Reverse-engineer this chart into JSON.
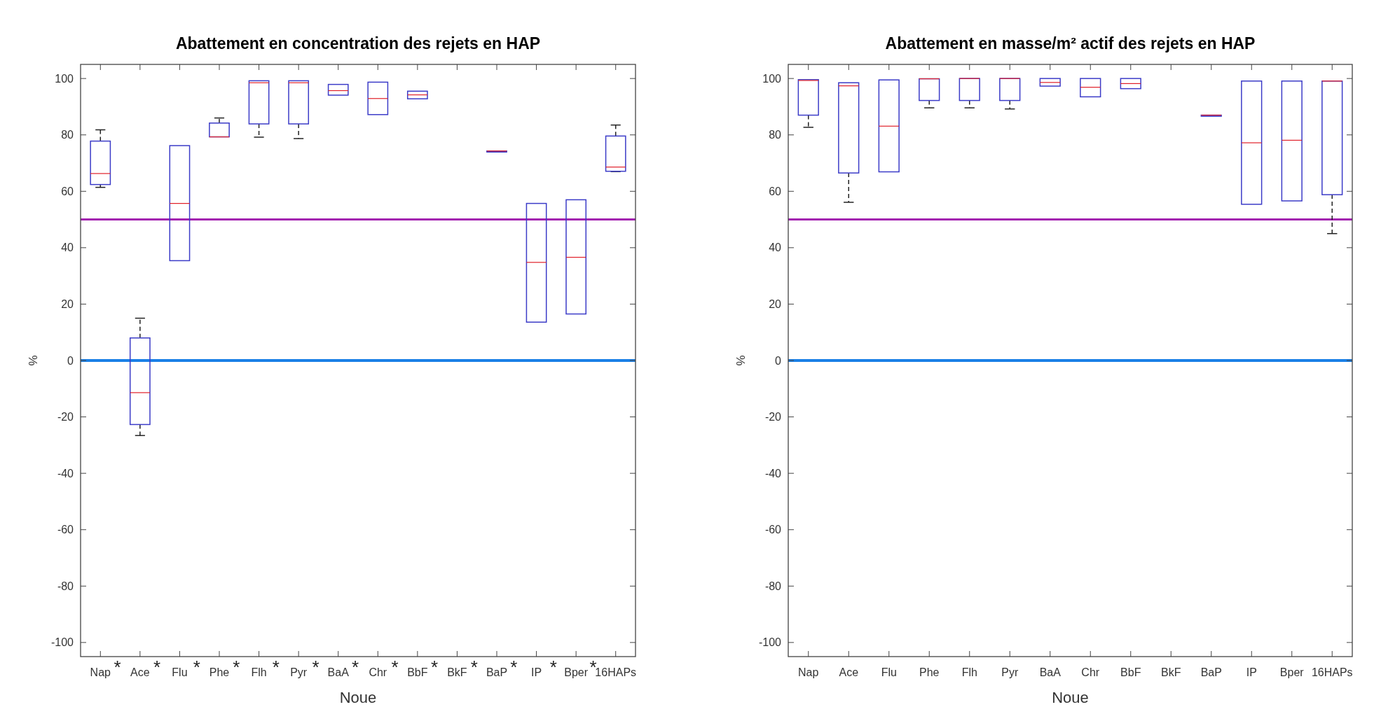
{
  "chart_data": [
    {
      "type": "box",
      "title": "Abattement en concentration des rejets en HAP",
      "xlabel": "Noue",
      "ylabel": "%",
      "categories": [
        "Nap",
        "Ace",
        "Flu",
        "Phe",
        "Flh",
        "Pyr",
        "BaA",
        "Chr",
        "BbF",
        "BkF",
        "BaP",
        "IP",
        "Bper",
        "16HAPs"
      ],
      "ylim": [
        -105,
        105
      ],
      "yticks": [
        -100,
        -80,
        -60,
        -40,
        -20,
        0,
        20,
        40,
        60,
        80,
        100
      ],
      "series": [
        {
          "color": "#3c3cc8",
          "boxes": [
            {
              "low": 61.4,
              "q1": 62.4,
              "median": 66.3,
              "q3": 77.8,
              "high": 81.8
            },
            {
              "low": -26.6,
              "q1": -22.7,
              "median": -11.4,
              "q3": 8,
              "high": 15
            },
            {
              "low": 35.4,
              "q1": 35.4,
              "median": 55.7,
              "q3": 76.2,
              "high": 76.2
            },
            {
              "low": 79.3,
              "q1": 79.3,
              "median": 79.3,
              "q3": 84.2,
              "high": 86
            },
            {
              "low": 79.2,
              "q1": 83.9,
              "median": 98.5,
              "q3": 99.2,
              "high": 99.2
            },
            {
              "low": 78.7,
              "q1": 83.9,
              "median": 98.5,
              "q3": 99.2,
              "high": 99.2
            },
            {
              "low": 94.1,
              "q1": 94.1,
              "median": 95.7,
              "q3": 97.9,
              "high": 97.9
            },
            {
              "low": 87.2,
              "q1": 87.2,
              "median": 92.9,
              "q3": 98.7,
              "high": 98.7
            },
            {
              "low": 92.8,
              "q1": 92.8,
              "median": 94.2,
              "q3": 95.5,
              "high": 95.5
            },
            null,
            {
              "low": 74.3,
              "q1": 74.3,
              "median": 74.3,
              "q3": 74.3,
              "high": 74.3
            },
            {
              "low": 13.6,
              "q1": 13.6,
              "median": 34.8,
              "q3": 55.7,
              "high": 55.7
            },
            {
              "low": 16.5,
              "q1": 16.5,
              "median": 36.6,
              "q3": 57,
              "high": 57
            },
            {
              "low": 67,
              "q1": 67.1,
              "median": 68.6,
              "q3": 79.6,
              "high": 83.5
            }
          ]
        }
      ],
      "ref_lines": [
        {
          "axis": "y",
          "value": 50,
          "color": "#a31fb0"
        },
        {
          "axis": "y",
          "value": 0,
          "color": "#1a80e6"
        }
      ],
      "annotations": [
        "*",
        "*",
        "*",
        "*",
        "*",
        "*",
        "*",
        "*",
        "*",
        "*",
        "*",
        "*",
        "*"
      ]
    },
    {
      "type": "box",
      "title": "Abattement en masse/m² actif des rejets en HAP",
      "xlabel": "Noue",
      "ylabel": "%",
      "categories": [
        "Nap",
        "Ace",
        "Flu",
        "Phe",
        "Flh",
        "Pyr",
        "BaA",
        "Chr",
        "BbF",
        "BkF",
        "BaP",
        "IP",
        "Bper",
        "16HAPs"
      ],
      "ylim": [
        -105,
        105
      ],
      "yticks": [
        -100,
        -80,
        -60,
        -40,
        -20,
        0,
        20,
        40,
        60,
        80,
        100
      ],
      "series": [
        {
          "color": "#3c3cc8",
          "boxes": [
            {
              "low": 82.7,
              "q1": 87,
              "median": 99.3,
              "q3": 99.6,
              "high": 99.6
            },
            {
              "low": 56.1,
              "q1": 66.5,
              "median": 97.4,
              "q3": 98.5,
              "high": 98.5
            },
            {
              "low": 66.9,
              "q1": 66.9,
              "median": 83.1,
              "q3": 99.5,
              "high": 99.5
            },
            {
              "low": 89.6,
              "q1": 92.2,
              "median": 99.9,
              "q3": 99.9,
              "high": 99.9
            },
            {
              "low": 89.6,
              "q1": 92.2,
              "median": 100,
              "q3": 100,
              "high": 100
            },
            {
              "low": 89.2,
              "q1": 92.2,
              "median": 100,
              "q3": 100,
              "high": 100
            },
            {
              "low": 97.3,
              "q1": 97.3,
              "median": 98.6,
              "q3": 100,
              "high": 100
            },
            {
              "low": 93.5,
              "q1": 93.5,
              "median": 96.9,
              "q3": 100,
              "high": 100
            },
            {
              "low": 96.4,
              "q1": 96.4,
              "median": 98.2,
              "q3": 100,
              "high": 100
            },
            null,
            {
              "low": 87,
              "q1": 87,
              "median": 87,
              "q3": 87,
              "high": 87
            },
            {
              "low": 55.4,
              "q1": 55.4,
              "median": 77.2,
              "q3": 99.1,
              "high": 99.1
            },
            {
              "low": 56.6,
              "q1": 56.6,
              "median": 78.1,
              "q3": 99.1,
              "high": 99.1
            },
            {
              "low": 45,
              "q1": 58.8,
              "median": 99.1,
              "q3": 99.1,
              "high": 99.1
            }
          ]
        }
      ],
      "ref_lines": [
        {
          "axis": "y",
          "value": 50,
          "color": "#a31fb0"
        },
        {
          "axis": "y",
          "value": 0,
          "color": "#1a80e6"
        }
      ]
    }
  ]
}
